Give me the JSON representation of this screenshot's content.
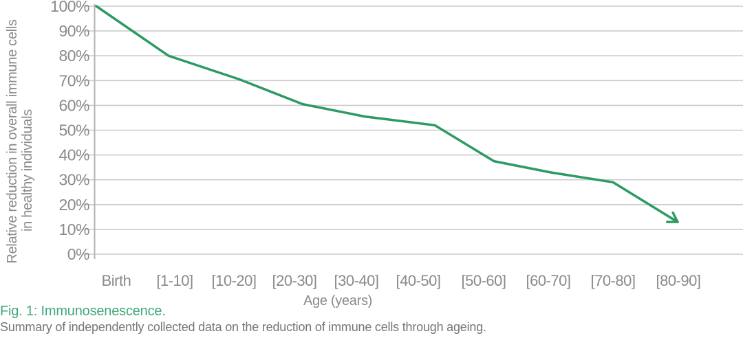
{
  "figure": {
    "caption_title": "Fig. 1: Immunosenescence.",
    "caption_text": "Summary of independently collected data on the reduction of immune cells through ageing."
  },
  "chart_data": {
    "type": "line",
    "title": "",
    "categories": [
      "Birth",
      "[1-10]",
      "[10-20]",
      "[20-30]",
      "[30-40]",
      "[40-50]",
      "[50-60]",
      "[60-70]",
      "[70-80]",
      "[80-90]"
    ],
    "series": [
      {
        "name": "Relative reduction in overall immune cells in healthy individuals",
        "values": [
          100,
          80,
          70.5,
          60.5,
          55.5,
          52,
          37.5,
          33,
          29,
          13
        ]
      }
    ],
    "xlabel": "Age (years)",
    "ylabel": "Relative reduction in overall immune cells in healthy individuals",
    "ylabel_lines": [
      "Relative reduction in overall immune cells",
      "in healthy individuals"
    ],
    "yticks": [
      0,
      10,
      20,
      30,
      40,
      50,
      60,
      70,
      80,
      90,
      100
    ],
    "ytick_suffix": "%",
    "ylim": [
      0,
      100
    ],
    "xlim_note": "categorical axis, first data point sits on the y-axis",
    "grid": "horizontal-gridlines",
    "legend": "none",
    "line_ends_with_arrow": true
  },
  "colors": {
    "line_green": "#2d9a63",
    "caption_green": "#41a87b",
    "axis_text_gray": "#8a8a8a",
    "caption_text_gray": "#757575",
    "gridline_gray": "#cbcbcb",
    "axis_line_gray": "#b3b3b3",
    "background": "#ffffff"
  }
}
